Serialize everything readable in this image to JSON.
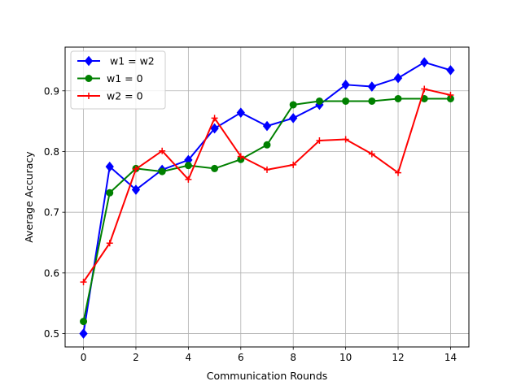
{
  "chart_data": {
    "type": "line",
    "xlabel": "Communication Rounds",
    "ylabel": "Average Accuracy",
    "xlim": [
      -0.7,
      14.7
    ],
    "ylim": [
      0.478,
      0.972
    ],
    "xticks": [
      0,
      2,
      4,
      6,
      8,
      10,
      12,
      14
    ],
    "yticks": [
      0.5,
      0.6,
      0.7,
      0.8,
      0.9
    ],
    "xtick_labels": [
      "0",
      "2",
      "4",
      "6",
      "8",
      "10",
      "12",
      "14"
    ],
    "ytick_labels": [
      "0.5",
      "0.6",
      "0.7",
      "0.8",
      "0.9"
    ],
    "grid": true,
    "legend_position": "upper-left",
    "x": [
      0,
      1,
      2,
      3,
      4,
      5,
      6,
      7,
      8,
      9,
      10,
      11,
      12,
      13,
      14
    ],
    "series": [
      {
        "name": " w1 = w2",
        "color": "#0000ff",
        "marker": "diamond",
        "values": [
          0.5,
          0.775,
          0.737,
          0.77,
          0.786,
          0.838,
          0.864,
          0.842,
          0.855,
          0.877,
          0.91,
          0.907,
          0.921,
          0.947,
          0.934
        ]
      },
      {
        "name": "w1 = 0",
        "color": "#008000",
        "marker": "circle",
        "values": [
          0.52,
          0.732,
          0.772,
          0.767,
          0.777,
          0.772,
          0.787,
          0.811,
          0.877,
          0.883,
          0.883,
          0.883,
          0.887,
          0.887,
          0.887
        ]
      },
      {
        "name": "w2 = 0",
        "color": "#ff0000",
        "marker": "plus",
        "values": [
          0.585,
          0.649,
          0.771,
          0.801,
          0.754,
          0.855,
          0.792,
          0.77,
          0.778,
          0.818,
          0.82,
          0.796,
          0.765,
          0.903,
          0.893
        ]
      }
    ]
  }
}
